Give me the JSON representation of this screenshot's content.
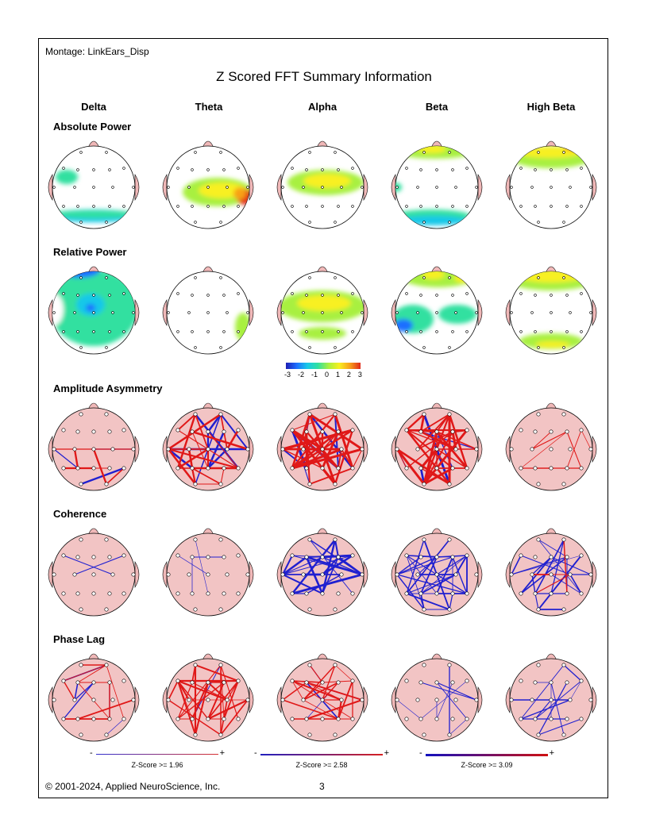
{
  "page": {
    "montage": "Montage:  LinkEars_Disp",
    "title": "Z Scored FFT Summary Information",
    "copyright": "© 2001-2024, Applied NeuroScience, Inc.",
    "page_number": "3"
  },
  "bands": [
    "Delta",
    "Theta",
    "Alpha",
    "Beta",
    "High Beta"
  ],
  "rows": [
    "Absolute Power",
    "Relative Power",
    "Amplitude Asymmetry",
    "Coherence",
    "Phase Lag"
  ],
  "colorbar": {
    "ticks": [
      "-3",
      "-2",
      "-1",
      "0",
      "1",
      "2",
      "3"
    ],
    "colors": [
      "#1e1eb4",
      "#1e6eff",
      "#18c8e8",
      "#30e0a0",
      "#a8f040",
      "#f8f020",
      "#f8a018",
      "#e02818"
    ]
  },
  "legends": [
    {
      "minus": "-",
      "plus": "+",
      "caption": "Z-Score >= 1.96",
      "low": "#3030d0",
      "high": "#d83030"
    },
    {
      "minus": "-",
      "plus": "+",
      "caption": "Z-Score >= 2.58",
      "low": "#2020c0",
      "high": "#d82020"
    },
    {
      "minus": "-",
      "plus": "+",
      "caption": "Z-Score >= 3.09",
      "low": "#1010c0",
      "high": "#d01010"
    }
  ],
  "colors": {
    "connectivity_face": "#f2c4c4",
    "ear": "#f0b8b8",
    "increase_line": "#e01818",
    "decrease_line": "#2020d0"
  }
}
